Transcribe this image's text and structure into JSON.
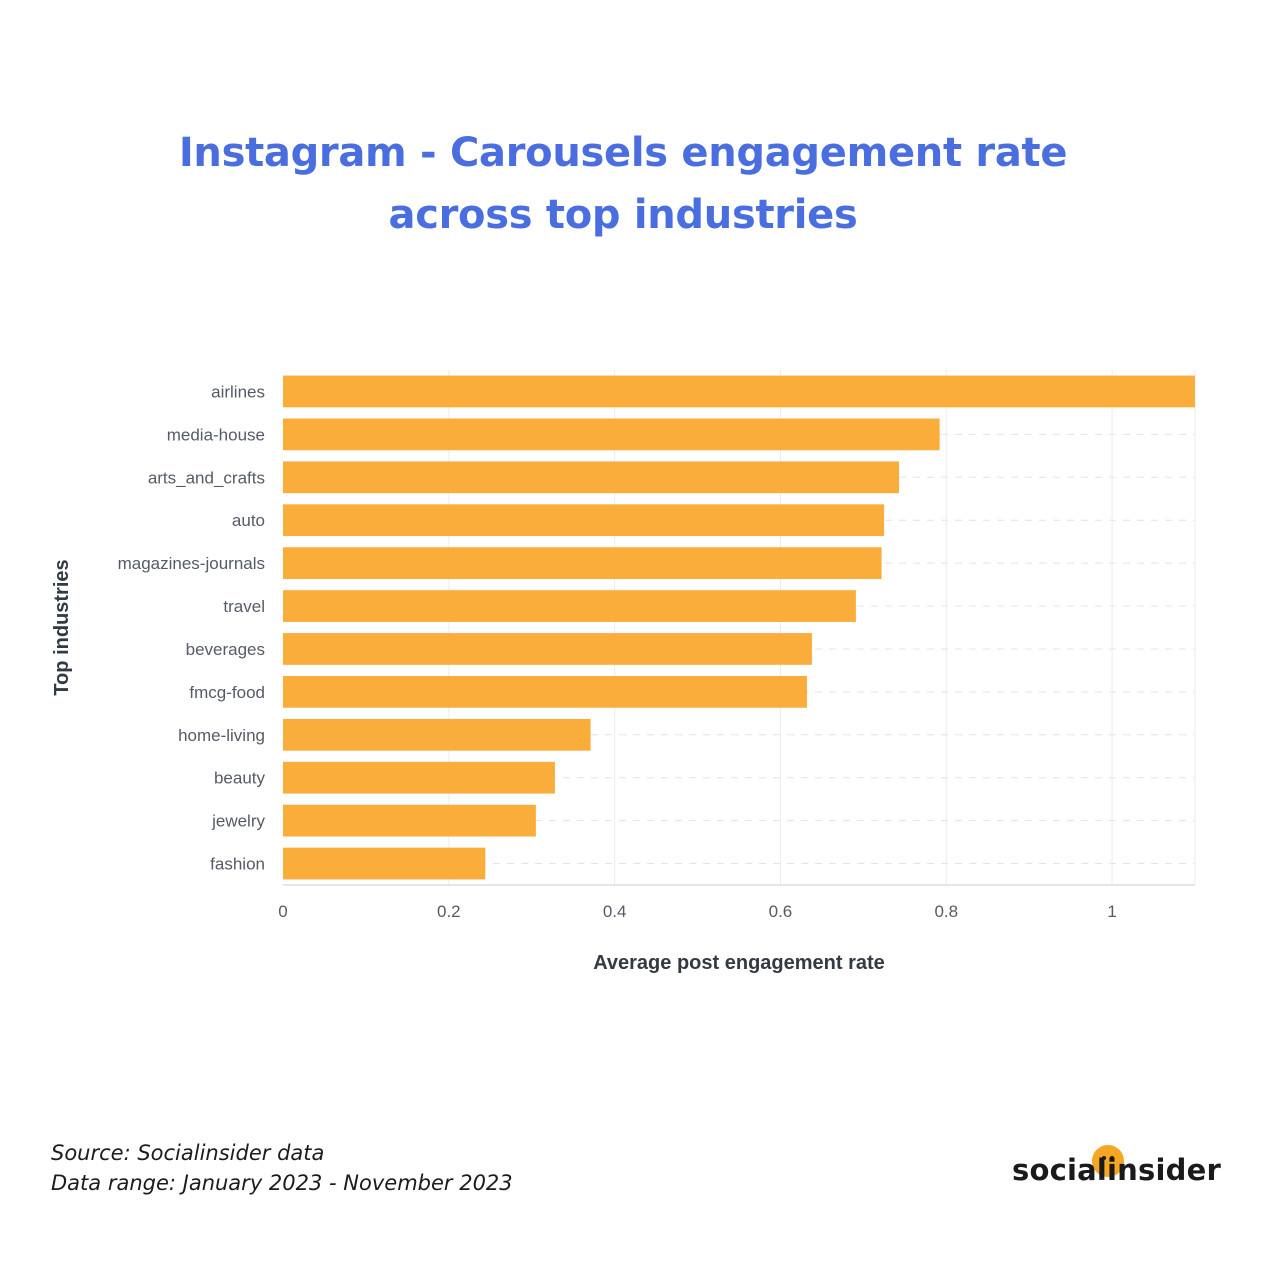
{
  "title": {
    "line1": "Instagram - Carousels engagement rate",
    "line2": "across top industries"
  },
  "chart_data": {
    "type": "bar",
    "orientation": "horizontal",
    "title": "Instagram - Carousels engagement rate across top industries",
    "xlabel": "Average post engagement rate",
    "ylabel": "Top industries",
    "xlim": [
      0,
      1.1
    ],
    "xticks": [
      {
        "value": 0,
        "label": "0"
      },
      {
        "value": 0.2,
        "label": "0.2"
      },
      {
        "value": 0.4,
        "label": "0.4"
      },
      {
        "value": 0.6,
        "label": "0.6"
      },
      {
        "value": 0.8,
        "label": "0.8"
      },
      {
        "value": 1,
        "label": "1"
      }
    ],
    "categories": [
      "airlines",
      "media-house",
      "arts_and_crafts",
      "auto",
      "magazines-journals",
      "travel",
      "beverages",
      "fmcg-food",
      "home-living",
      "beauty",
      "jewelry",
      "fashion"
    ],
    "values": [
      1.1,
      0.792,
      0.743,
      0.725,
      0.722,
      0.691,
      0.638,
      0.632,
      0.371,
      0.328,
      0.305,
      0.244
    ],
    "bar_color": "#fbad3c",
    "grid": "dashed"
  },
  "footer": {
    "source": "Source: Socialinsider data",
    "range": "Data range: January 2023 - November 2023"
  },
  "logo": {
    "text": "socialinsider",
    "accent": "#f5a623"
  }
}
